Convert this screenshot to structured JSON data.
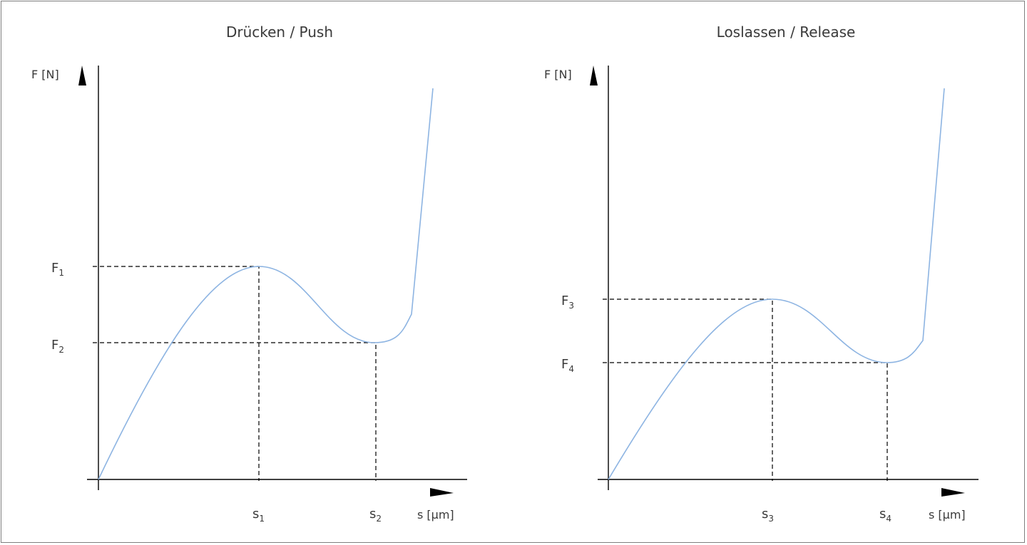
{
  "chart_data": [
    {
      "type": "line",
      "title": "Drücken / Push",
      "ylabel": "F [N]",
      "xlabel": "s [µm]",
      "y_ticks": [
        {
          "main": "F",
          "sub": "1"
        },
        {
          "main": "F",
          "sub": "2"
        }
      ],
      "x_ticks": [
        {
          "main": "s",
          "sub": "1"
        },
        {
          "main": "s",
          "sub": "2"
        }
      ],
      "series": [
        {
          "color": "#8db4e2",
          "x": [
            0,
            0.05,
            0.1,
            0.15,
            0.2,
            0.25,
            0.3,
            0.35,
            0.4,
            0.45,
            0.48,
            0.52,
            0.55,
            0.6,
            0.65,
            0.7,
            0.75,
            0.8,
            0.82,
            0.86,
            0.9,
            0.95,
            1.0
          ],
          "y": [
            0,
            0.12,
            0.24,
            0.35,
            0.44,
            0.53,
            0.61,
            0.67,
            0.72,
            0.74,
            0.74,
            0.73,
            0.71,
            0.66,
            0.6,
            0.55,
            0.51,
            0.5,
            0.5,
            0.51,
            0.55,
            0.95,
            1.35
          ]
        }
      ],
      "ylim": [
        0,
        1.4
      ],
      "xlim": [
        0,
        1.1
      ],
      "grid": false
    },
    {
      "type": "line",
      "title": "Loslassen / Release",
      "ylabel": "F [N]",
      "xlabel": "s [µm]",
      "y_ticks": [
        {
          "main": "F",
          "sub": "3"
        },
        {
          "main": "F",
          "sub": "4"
        }
      ],
      "x_ticks": [
        {
          "main": "s",
          "sub": "3"
        },
        {
          "main": "s",
          "sub": "4"
        }
      ],
      "series": [
        {
          "color": "#8db4e2",
          "x": [
            0,
            0.05,
            0.1,
            0.15,
            0.2,
            0.25,
            0.3,
            0.35,
            0.4,
            0.45,
            0.48,
            0.52,
            0.55,
            0.6,
            0.65,
            0.7,
            0.75,
            0.8,
            0.82,
            0.86,
            0.9,
            0.95,
            1.0
          ],
          "y": [
            0,
            0.09,
            0.18,
            0.27,
            0.35,
            0.43,
            0.5,
            0.55,
            0.58,
            0.6,
            0.6,
            0.59,
            0.57,
            0.52,
            0.47,
            0.42,
            0.39,
            0.38,
            0.38,
            0.39,
            0.45,
            0.95,
            1.35
          ]
        }
      ],
      "ylim": [
        0,
        1.4
      ],
      "xlim": [
        0,
        1.1
      ],
      "grid": false
    }
  ]
}
